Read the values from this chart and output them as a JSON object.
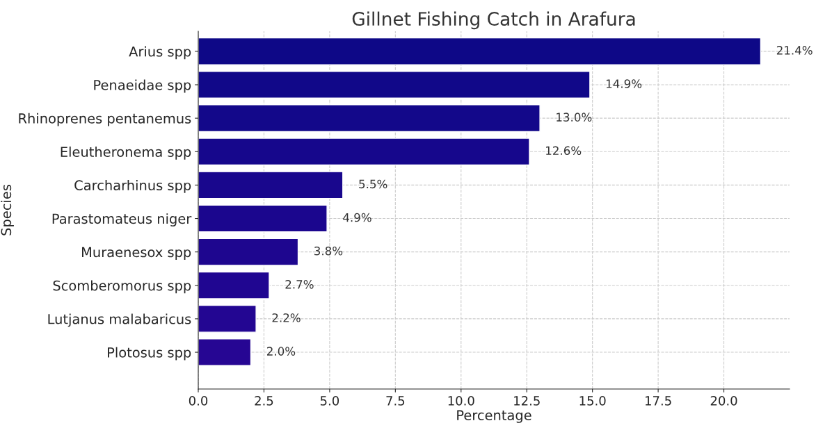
{
  "chart_data": {
    "type": "bar",
    "orientation": "horizontal",
    "title": "Gillnet Fishing Catch in Arafura",
    "xlabel": "Percentage",
    "ylabel": "Species",
    "categories": [
      "Arius spp",
      "Penaeidae spp",
      "Rhinoprenes pentanemus",
      "Eleutheronema spp",
      "Carcharhinus spp",
      "Parastomateus niger",
      "Muraenesox spp",
      "Scomberomorus spp",
      "Lutjanus malabaricus",
      "Plotosus spp"
    ],
    "values": [
      21.4,
      14.9,
      13.0,
      12.6,
      5.5,
      4.9,
      3.8,
      2.7,
      2.2,
      2.0
    ],
    "value_labels": [
      "21.4%",
      "14.9%",
      "13.0%",
      "12.6%",
      "5.5%",
      "4.9%",
      "3.8%",
      "2.7%",
      "2.2%",
      "2.0%"
    ],
    "colors": [
      "#0e0887",
      "#110889",
      "#13088a",
      "#16078c",
      "#19078d",
      "#1b068e",
      "#1e068f",
      "#200691",
      "#230692",
      "#260693"
    ],
    "xlim": [
      0,
      22.5
    ],
    "xticks": [
      {
        "value": 0,
        "label": "0.0"
      },
      2.5,
      {
        "value": 5,
        "label": "5.0"
      },
      7.5,
      {
        "value": 10,
        "label": "10.0"
      },
      12.5,
      {
        "value": 15,
        "label": "15.0"
      },
      17.5,
      {
        "value": 20,
        "label": "20.0"
      }
    ],
    "grid": true
  }
}
